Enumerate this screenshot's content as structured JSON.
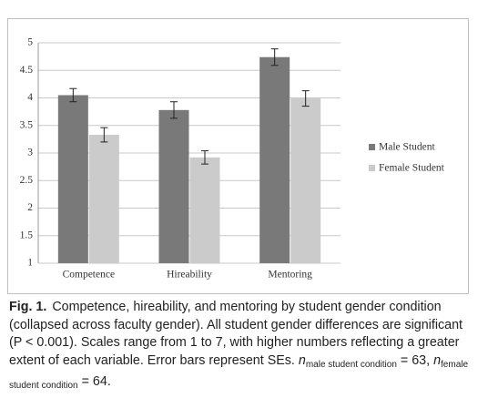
{
  "chart_data": {
    "type": "bar",
    "categories": [
      "Competence",
      "Hireability",
      "Mentoring"
    ],
    "series": [
      {
        "name": "Male Student",
        "color": "#797979",
        "values": [
          4.05,
          3.78,
          4.74
        ],
        "errors": [
          0.12,
          0.15,
          0.15
        ]
      },
      {
        "name": "Female Student",
        "color": "#cbcbcb",
        "values": [
          3.33,
          2.92,
          3.99
        ],
        "errors": [
          0.13,
          0.12,
          0.14
        ]
      }
    ],
    "ylim": [
      1,
      5
    ],
    "yticks": [
      1,
      1.5,
      2,
      2.5,
      3,
      3.5,
      4,
      4.5,
      5
    ],
    "grid": true,
    "legend": "right"
  },
  "caption": {
    "label": "Fig. 1.",
    "body": "Competence, hireability, and mentoring by student gender condition (collapsed across faculty gender). All student gender differences are significant (P < 0.001). Scales range from 1 to 7, with higher numbers reflecting a greater extent of each variable. Error bars represent SEs.",
    "stats": [
      {
        "symbol": "n",
        "subscript": "male student condition",
        "relation": "= 63,"
      },
      {
        "symbol": "n",
        "subscript": "female student condition",
        "relation": "= 64."
      }
    ]
  }
}
